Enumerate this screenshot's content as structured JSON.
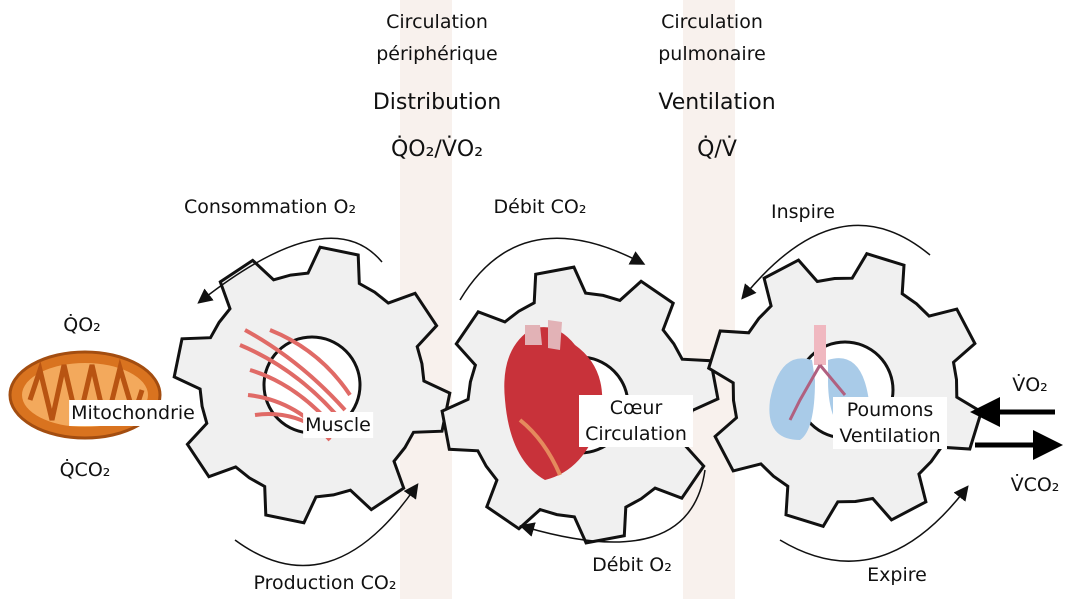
{
  "columns": [
    {
      "title": "Circulation périphérique",
      "name": "Distribution",
      "ratio": "Q̇O₂/V̇O₂"
    },
    {
      "title": "Circulation pulmonaire",
      "name": "Ventilation",
      "ratio": "Q̇/V̇"
    }
  ],
  "arrows": {
    "top_left": "Consommation O₂",
    "top_middle": "Débit CO₂",
    "top_right": "Inspire",
    "bottom_left": "Production CO₂",
    "bottom_middle": "Débit O₂",
    "bottom_right": "Expire"
  },
  "mitochondria": {
    "label": "Mitochondrie",
    "in": "Q̇O₂",
    "out": "Q̇CO₂"
  },
  "gears": [
    {
      "label": "Muscle"
    },
    {
      "label": "Cœur Circulation"
    },
    {
      "label": "Poumons Ventilation"
    }
  ],
  "exchange": {
    "in": "V̇O₂",
    "out": "V̇CO₂"
  }
}
